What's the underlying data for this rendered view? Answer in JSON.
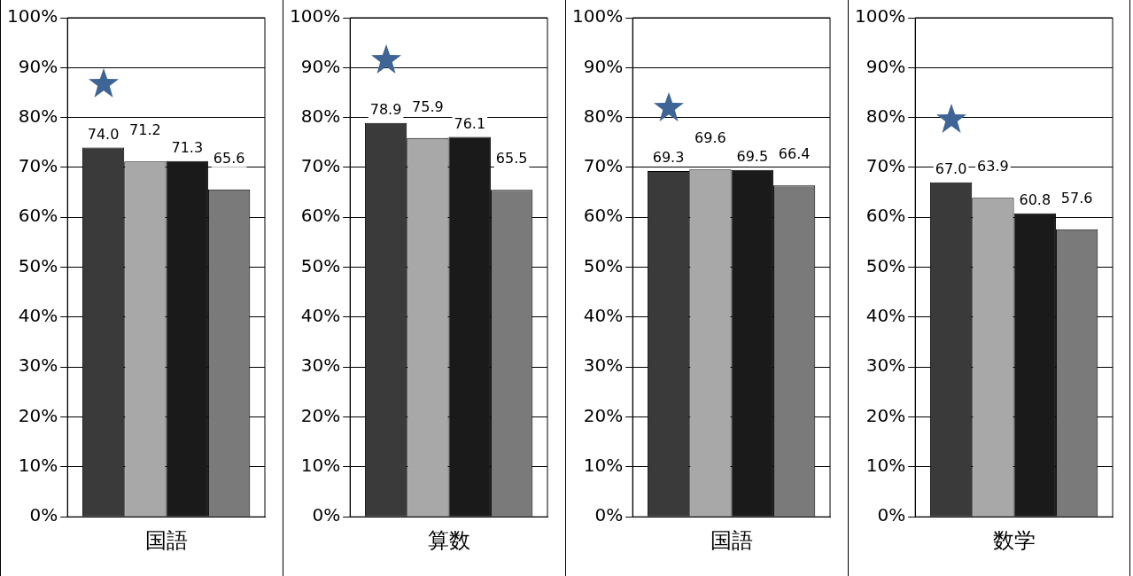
{
  "chart_data": [
    {
      "type": "bar",
      "categories": [
        "国語"
      ],
      "series": [
        {
          "color": "#3a3a3a",
          "values": [
            74.0
          ],
          "value_labels": [
            "74.0"
          ]
        },
        {
          "color": "#a8a8a8",
          "values": [
            71.2
          ],
          "value_labels": [
            "71.2"
          ]
        },
        {
          "color": "#1a1a1a",
          "values": [
            71.3
          ],
          "value_labels": [
            "71.3"
          ]
        },
        {
          "color": "#7a7a7a",
          "values": [
            65.6
          ],
          "value_labels": [
            "65.6"
          ]
        }
      ],
      "ylim": [
        0,
        100
      ],
      "yticks": [
        {
          "value": 0,
          "label": "0%"
        },
        {
          "value": 10,
          "label": "10%"
        },
        {
          "value": 20,
          "label": "20%"
        },
        {
          "value": 30,
          "label": "30%"
        },
        {
          "value": 40,
          "label": "40%"
        },
        {
          "value": 50,
          "label": "50%"
        },
        {
          "value": 60,
          "label": "60%"
        },
        {
          "value": 70,
          "label": "70%"
        },
        {
          "value": 80,
          "label": "80%"
        },
        {
          "value": 90,
          "label": "90%"
        },
        {
          "value": 100,
          "label": "100%"
        }
      ],
      "grid": "y",
      "legend": false
    },
    {
      "type": "bar",
      "categories": [
        "算数"
      ],
      "series": [
        {
          "color": "#3a3a3a",
          "values": [
            78.9
          ],
          "value_labels": [
            "78.9"
          ]
        },
        {
          "color": "#a8a8a8",
          "values": [
            75.9
          ],
          "value_labels": [
            "75.9"
          ]
        },
        {
          "color": "#1a1a1a",
          "values": [
            76.1
          ],
          "value_labels": [
            "76.1"
          ]
        },
        {
          "color": "#7a7a7a",
          "values": [
            65.5
          ],
          "value_labels": [
            "65.5"
          ]
        }
      ],
      "ylim": [
        0,
        100
      ],
      "yticks": [
        {
          "value": 0,
          "label": "0%"
        },
        {
          "value": 10,
          "label": "10%"
        },
        {
          "value": 20,
          "label": "20%"
        },
        {
          "value": 30,
          "label": "30%"
        },
        {
          "value": 40,
          "label": "40%"
        },
        {
          "value": 50,
          "label": "50%"
        },
        {
          "value": 60,
          "label": "60%"
        },
        {
          "value": 70,
          "label": "70%"
        },
        {
          "value": 80,
          "label": "80%"
        },
        {
          "value": 90,
          "label": "90%"
        },
        {
          "value": 100,
          "label": "100%"
        }
      ],
      "grid": "y",
      "legend": false
    },
    {
      "type": "bar",
      "categories": [
        "国語"
      ],
      "series": [
        {
          "color": "#3a3a3a",
          "values": [
            69.3
          ],
          "value_labels": [
            "69.3"
          ]
        },
        {
          "color": "#a8a8a8",
          "values": [
            69.6
          ],
          "value_labels": [
            "69.6"
          ]
        },
        {
          "color": "#1a1a1a",
          "values": [
            69.5
          ],
          "value_labels": [
            "69.5"
          ]
        },
        {
          "color": "#7a7a7a",
          "values": [
            66.4
          ],
          "value_labels": [
            "66.4"
          ]
        }
      ],
      "ylim": [
        0,
        100
      ],
      "yticks": [
        {
          "value": 0,
          "label": "0%"
        },
        {
          "value": 10,
          "label": "10%"
        },
        {
          "value": 20,
          "label": "20%"
        },
        {
          "value": 30,
          "label": "30%"
        },
        {
          "value": 40,
          "label": "40%"
        },
        {
          "value": 50,
          "label": "50%"
        },
        {
          "value": 60,
          "label": "60%"
        },
        {
          "value": 70,
          "label": "70%"
        },
        {
          "value": 80,
          "label": "80%"
        },
        {
          "value": 90,
          "label": "90%"
        },
        {
          "value": 100,
          "label": "100%"
        }
      ],
      "grid": "y",
      "legend": false
    },
    {
      "type": "bar",
      "categories": [
        "数学"
      ],
      "series": [
        {
          "color": "#3a3a3a",
          "values": [
            67.0
          ],
          "value_labels": [
            "67.0"
          ]
        },
        {
          "color": "#a8a8a8",
          "values": [
            63.9
          ],
          "value_labels": [
            "63.9"
          ]
        },
        {
          "color": "#1a1a1a",
          "values": [
            60.8
          ],
          "value_labels": [
            "60.8"
          ]
        },
        {
          "color": "#7a7a7a",
          "values": [
            57.6
          ],
          "value_labels": [
            "57.6"
          ]
        }
      ],
      "ylim": [
        0,
        100
      ],
      "yticks": [
        {
          "value": 0,
          "label": "0%"
        },
        {
          "value": 10,
          "label": "10%"
        },
        {
          "value": 20,
          "label": "20%"
        },
        {
          "value": 30,
          "label": "30%"
        },
        {
          "value": 40,
          "label": "40%"
        },
        {
          "value": 50,
          "label": "50%"
        },
        {
          "value": 60,
          "label": "60%"
        },
        {
          "value": 70,
          "label": "70%"
        },
        {
          "value": 80,
          "label": "80%"
        },
        {
          "value": 90,
          "label": "90%"
        },
        {
          "value": 100,
          "label": "100%"
        }
      ],
      "grid": "y",
      "legend": false
    }
  ]
}
